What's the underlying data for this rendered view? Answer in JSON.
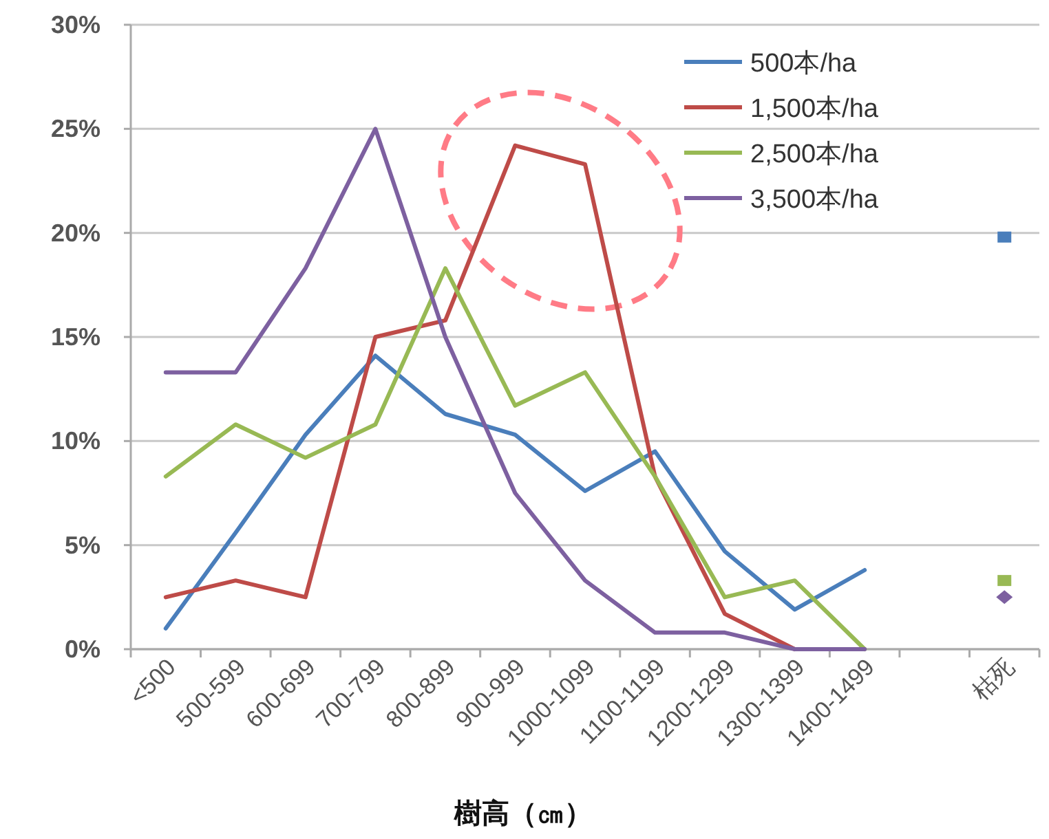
{
  "chart_data": {
    "type": "line",
    "xlabel": "樹高（㎝）",
    "categories": [
      "<500",
      "500-599",
      "600-699",
      "700-799",
      "800-899",
      "900-999",
      "1000-1099",
      "1100-1199",
      "1200-1299",
      "1300-1399",
      "1400-1499",
      null,
      "枯死"
    ],
    "series": [
      {
        "name": "500本/ha",
        "color": "#4a7ebb",
        "values": [
          1.0,
          5.6,
          10.3,
          14.1,
          11.3,
          10.3,
          7.6,
          9.5,
          4.7,
          1.9,
          3.8,
          null,
          null
        ]
      },
      {
        "name": "1,500本/ha",
        "color": "#be4b48",
        "values": [
          2.5,
          3.3,
          2.5,
          15.0,
          15.8,
          24.2,
          23.3,
          8.3,
          1.7,
          0,
          null,
          null,
          null
        ]
      },
      {
        "name": "2,500本/ha",
        "color": "#98b954",
        "values": [
          8.3,
          10.8,
          9.2,
          10.8,
          18.3,
          11.7,
          13.3,
          8.3,
          2.5,
          3.3,
          0,
          null,
          null
        ]
      },
      {
        "name": "3,500本/ha",
        "color": "#7d60a0",
        "values": [
          13.3,
          13.3,
          18.3,
          25.0,
          15.0,
          7.5,
          3.3,
          0.8,
          0.8,
          0,
          0,
          null,
          null
        ]
      },
      {
        "type": "scatter",
        "color": "#4a7ebb",
        "marker": "square",
        "x": [
          "枯死"
        ],
        "values": [
          19.8
        ]
      },
      {
        "type": "scatter",
        "color": "#98b954",
        "marker": "square",
        "x": [
          "枯死"
        ],
        "values": [
          3.3
        ]
      },
      {
        "type": "scatter",
        "color": "#7d60a0",
        "marker": "diamond",
        "x": [
          "枯死"
        ],
        "values": [
          2.5
        ]
      }
    ],
    "ylim": [
      0,
      30
    ],
    "yticks": [
      {
        "value": 0,
        "label": "0%"
      },
      {
        "value": 5,
        "label": "5%"
      },
      {
        "value": 10,
        "label": "10%"
      },
      {
        "value": 15,
        "label": "15%"
      },
      {
        "value": 20,
        "label": "20%"
      },
      {
        "value": 25,
        "label": "25%"
      },
      {
        "value": 30,
        "label": "30%"
      }
    ],
    "grid": "y",
    "legend": "top right"
  }
}
